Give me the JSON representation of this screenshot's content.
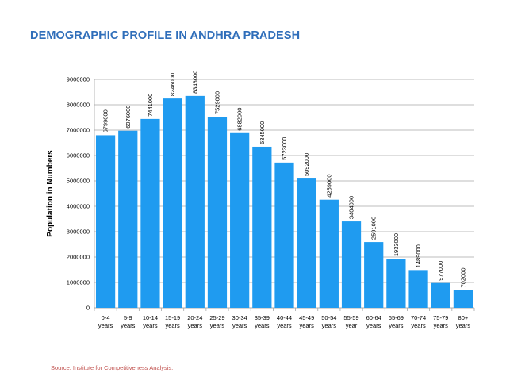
{
  "chart_data": {
    "type": "bar",
    "title": "DEMOGRAPHIC PROFILE IN ANDHRA PRADESH",
    "xlabel": "",
    "ylabel": "Population in Numbers",
    "ylim": [
      0,
      9000000
    ],
    "yticks": [
      "0",
      "1000000",
      "2000000",
      "3000000",
      "4000000",
      "5000000",
      "6000000",
      "7000000",
      "8000000",
      "9000000"
    ],
    "categories": [
      [
        "0-4",
        "years"
      ],
      [
        "5-9",
        "years"
      ],
      [
        "10-14",
        "years"
      ],
      [
        "15-19",
        "years"
      ],
      [
        "20-24",
        "years"
      ],
      [
        "25-29",
        "years"
      ],
      [
        "30-34",
        "years"
      ],
      [
        "35-39",
        "years"
      ],
      [
        "40-44",
        "years"
      ],
      [
        "45-49",
        "years"
      ],
      [
        "50-54",
        "years"
      ],
      [
        "55-59",
        "year"
      ],
      [
        "60-64",
        "years"
      ],
      [
        "65-69",
        "years"
      ],
      [
        "70-74",
        "years"
      ],
      [
        "75-79",
        "years"
      ],
      [
        "80+",
        "years"
      ]
    ],
    "values": [
      6799000,
      6976000,
      7441000,
      8246000,
      8348000,
      7529000,
      6882000,
      6345000,
      5723000,
      5092000,
      4259000,
      3404000,
      2591000,
      1933000,
      1489000,
      977000,
      702000
    ],
    "data_labels": [
      "6799000",
      "6976000",
      "7441000",
      "8246000",
      "8348000",
      "7529000",
      "6882000",
      "6345000",
      "5723000",
      "5092000",
      "4259000",
      "3404000",
      "2591000",
      "1933000",
      "1489000",
      "977000",
      "702000"
    ],
    "grid": true,
    "legend": "none",
    "colors": {
      "bar": "#1F9BF0",
      "grid": "#A6A6A6",
      "title": "#2F6EBA",
      "source": "#C0504D"
    }
  },
  "footer": {
    "source": "Source: Institute for Competitiveness Analysis,"
  }
}
